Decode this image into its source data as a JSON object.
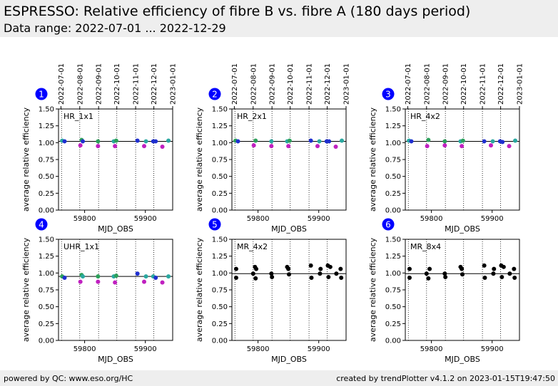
{
  "header": {
    "title": "ESPRESSO: Relative efficiency of fibre B vs. fibre A (180 days period)",
    "subtitle": "Data range: 2022-07-01 ... 2022-12-29"
  },
  "footer": {
    "left": "powered by QC: www.eso.org/HC",
    "right": "created by trendPlotter v4.1.2 on 2023-01-15T19:47:50"
  },
  "colors": {
    "header_bg": "#eeeeee",
    "badge": "#0000ff",
    "point_black": "#000000",
    "point_blue": "#1f2fd0",
    "point_green": "#2ca05a",
    "point_magenta": "#c020c0",
    "point_teal": "#2aa8a0"
  },
  "chart_data": {
    "type": "scatter",
    "shared": {
      "xlabel": "MJD_OBS",
      "ylabel": "average relative efficiency",
      "xlim": [
        59757,
        59945
      ],
      "ylim": [
        0.0,
        1.5
      ],
      "yticks": [
        "0.00",
        "0.25",
        "0.50",
        "0.75",
        "1.00",
        "1.25",
        "1.50"
      ],
      "xticks": [
        59800,
        59900
      ],
      "date_ticks": [
        "2022-07-01",
        "2022-08-01",
        "2022-09-01",
        "2022-10-01",
        "2022-11-01",
        "2022-12-01",
        "2023-01-01"
      ],
      "date_tick_mjd": [
        59761,
        59792,
        59823,
        59853,
        59884,
        59914,
        59945
      ],
      "vlines_mjd": [
        59762,
        59792,
        59823,
        59853,
        59884,
        59914,
        59945
      ],
      "reference_line": 1.0
    },
    "panels": [
      {
        "number": "1",
        "label": "HR_1x1",
        "show_dates": true,
        "ref": 1.02,
        "points": [
          {
            "x": 59763,
            "y": 1.03,
            "c": "teal"
          },
          {
            "x": 59767,
            "y": 1.02,
            "c": "blue"
          },
          {
            "x": 59793,
            "y": 0.96,
            "c": "magenta"
          },
          {
            "x": 59795,
            "y": 1.04,
            "c": "green"
          },
          {
            "x": 59797,
            "y": 1.02,
            "c": "blue"
          },
          {
            "x": 59822,
            "y": 0.95,
            "c": "magenta"
          },
          {
            "x": 59822,
            "y": 1.02,
            "c": "green"
          },
          {
            "x": 59848,
            "y": 1.02,
            "c": "teal"
          },
          {
            "x": 59850,
            "y": 0.95,
            "c": "magenta"
          },
          {
            "x": 59852,
            "y": 1.03,
            "c": "green"
          },
          {
            "x": 59887,
            "y": 1.03,
            "c": "blue"
          },
          {
            "x": 59898,
            "y": 0.95,
            "c": "magenta"
          },
          {
            "x": 59901,
            "y": 1.02,
            "c": "teal"
          },
          {
            "x": 59913,
            "y": 1.02,
            "c": "blue"
          },
          {
            "x": 59917,
            "y": 1.02,
            "c": "blue"
          },
          {
            "x": 59928,
            "y": 0.94,
            "c": "magenta"
          },
          {
            "x": 59938,
            "y": 1.03,
            "c": "teal"
          }
        ]
      },
      {
        "number": "2",
        "label": "HR_2x1",
        "show_dates": true,
        "ref": 1.02,
        "points": [
          {
            "x": 59763,
            "y": 1.03,
            "c": "green"
          },
          {
            "x": 59767,
            "y": 1.02,
            "c": "blue"
          },
          {
            "x": 59793,
            "y": 0.96,
            "c": "magenta"
          },
          {
            "x": 59796,
            "y": 1.03,
            "c": "green"
          },
          {
            "x": 59822,
            "y": 0.95,
            "c": "magenta"
          },
          {
            "x": 59822,
            "y": 1.02,
            "c": "teal"
          },
          {
            "x": 59848,
            "y": 1.02,
            "c": "teal"
          },
          {
            "x": 59850,
            "y": 0.95,
            "c": "magenta"
          },
          {
            "x": 59852,
            "y": 1.03,
            "c": "green"
          },
          {
            "x": 59887,
            "y": 1.03,
            "c": "blue"
          },
          {
            "x": 59898,
            "y": 0.95,
            "c": "magenta"
          },
          {
            "x": 59901,
            "y": 1.02,
            "c": "teal"
          },
          {
            "x": 59913,
            "y": 1.02,
            "c": "blue"
          },
          {
            "x": 59917,
            "y": 1.02,
            "c": "blue"
          },
          {
            "x": 59928,
            "y": 0.94,
            "c": "magenta"
          },
          {
            "x": 59938,
            "y": 1.03,
            "c": "teal"
          }
        ]
      },
      {
        "number": "3",
        "label": "HR_4x2",
        "show_dates": true,
        "ref": 1.02,
        "points": [
          {
            "x": 59763,
            "y": 1.03,
            "c": "teal"
          },
          {
            "x": 59767,
            "y": 1.02,
            "c": "blue"
          },
          {
            "x": 59793,
            "y": 0.95,
            "c": "magenta"
          },
          {
            "x": 59795,
            "y": 1.04,
            "c": "green"
          },
          {
            "x": 59822,
            "y": 0.96,
            "c": "magenta"
          },
          {
            "x": 59822,
            "y": 1.02,
            "c": "green"
          },
          {
            "x": 59848,
            "y": 1.02,
            "c": "teal"
          },
          {
            "x": 59850,
            "y": 0.95,
            "c": "magenta"
          },
          {
            "x": 59852,
            "y": 1.03,
            "c": "green"
          },
          {
            "x": 59887,
            "y": 1.02,
            "c": "blue"
          },
          {
            "x": 59898,
            "y": 0.96,
            "c": "magenta"
          },
          {
            "x": 59901,
            "y": 1.02,
            "c": "teal"
          },
          {
            "x": 59913,
            "y": 1.02,
            "c": "blue"
          },
          {
            "x": 59917,
            "y": 1.01,
            "c": "blue"
          },
          {
            "x": 59928,
            "y": 0.95,
            "c": "magenta"
          },
          {
            "x": 59938,
            "y": 1.03,
            "c": "teal"
          }
        ]
      },
      {
        "number": "4",
        "label": "UHR_1x1",
        "show_dates": false,
        "ref": 0.95,
        "points": [
          {
            "x": 59763,
            "y": 0.95,
            "c": "green"
          },
          {
            "x": 59767,
            "y": 0.93,
            "c": "blue"
          },
          {
            "x": 59793,
            "y": 0.87,
            "c": "magenta"
          },
          {
            "x": 59795,
            "y": 0.97,
            "c": "green"
          },
          {
            "x": 59797,
            "y": 0.95,
            "c": "teal"
          },
          {
            "x": 59822,
            "y": 0.87,
            "c": "magenta"
          },
          {
            "x": 59822,
            "y": 0.95,
            "c": "green"
          },
          {
            "x": 59848,
            "y": 0.95,
            "c": "teal"
          },
          {
            "x": 59850,
            "y": 0.86,
            "c": "magenta"
          },
          {
            "x": 59852,
            "y": 0.96,
            "c": "green"
          },
          {
            "x": 59887,
            "y": 0.99,
            "c": "blue"
          },
          {
            "x": 59898,
            "y": 0.87,
            "c": "magenta"
          },
          {
            "x": 59901,
            "y": 0.95,
            "c": "teal"
          },
          {
            "x": 59913,
            "y": 0.95,
            "c": "teal"
          },
          {
            "x": 59917,
            "y": 0.93,
            "c": "blue"
          },
          {
            "x": 59928,
            "y": 0.86,
            "c": "magenta"
          },
          {
            "x": 59938,
            "y": 0.95,
            "c": "teal"
          }
        ]
      },
      {
        "number": "5",
        "label": "MR_4x2",
        "show_dates": false,
        "ref": 0.99,
        "points": [
          {
            "x": 59764,
            "y": 1.06,
            "c": "black"
          },
          {
            "x": 59764,
            "y": 0.93,
            "c": "black"
          },
          {
            "x": 59792,
            "y": 0.99,
            "c": "black"
          },
          {
            "x": 59795,
            "y": 1.09,
            "c": "black"
          },
          {
            "x": 59796,
            "y": 0.92,
            "c": "black"
          },
          {
            "x": 59797,
            "y": 1.06,
            "c": "black"
          },
          {
            "x": 59822,
            "y": 0.99,
            "c": "black"
          },
          {
            "x": 59823,
            "y": 0.94,
            "c": "black"
          },
          {
            "x": 59848,
            "y": 1.09,
            "c": "black"
          },
          {
            "x": 59850,
            "y": 1.06,
            "c": "black"
          },
          {
            "x": 59851,
            "y": 0.98,
            "c": "black"
          },
          {
            "x": 59887,
            "y": 1.11,
            "c": "black"
          },
          {
            "x": 59888,
            "y": 0.93,
            "c": "black"
          },
          {
            "x": 59902,
            "y": 0.99,
            "c": "black"
          },
          {
            "x": 59903,
            "y": 1.06,
            "c": "black"
          },
          {
            "x": 59915,
            "y": 1.11,
            "c": "black"
          },
          {
            "x": 59916,
            "y": 0.94,
            "c": "black"
          },
          {
            "x": 59919,
            "y": 1.09,
            "c": "black"
          },
          {
            "x": 59929,
            "y": 0.99,
            "c": "black"
          },
          {
            "x": 59936,
            "y": 1.06,
            "c": "black"
          },
          {
            "x": 59937,
            "y": 0.93,
            "c": "black"
          }
        ]
      },
      {
        "number": "6",
        "label": "MR_8x4",
        "show_dates": false,
        "ref": 0.99,
        "points": [
          {
            "x": 59764,
            "y": 1.06,
            "c": "black"
          },
          {
            "x": 59764,
            "y": 0.93,
            "c": "black"
          },
          {
            "x": 59792,
            "y": 0.99,
            "c": "black"
          },
          {
            "x": 59795,
            "y": 0.92,
            "c": "black"
          },
          {
            "x": 59797,
            "y": 1.06,
            "c": "black"
          },
          {
            "x": 59822,
            "y": 0.99,
            "c": "black"
          },
          {
            "x": 59823,
            "y": 0.94,
            "c": "black"
          },
          {
            "x": 59848,
            "y": 1.09,
            "c": "black"
          },
          {
            "x": 59850,
            "y": 1.06,
            "c": "black"
          },
          {
            "x": 59851,
            "y": 0.98,
            "c": "black"
          },
          {
            "x": 59887,
            "y": 1.11,
            "c": "black"
          },
          {
            "x": 59888,
            "y": 0.93,
            "c": "black"
          },
          {
            "x": 59902,
            "y": 0.99,
            "c": "black"
          },
          {
            "x": 59903,
            "y": 1.06,
            "c": "black"
          },
          {
            "x": 59915,
            "y": 1.11,
            "c": "black"
          },
          {
            "x": 59916,
            "y": 0.94,
            "c": "black"
          },
          {
            "x": 59919,
            "y": 1.09,
            "c": "black"
          },
          {
            "x": 59929,
            "y": 0.99,
            "c": "black"
          },
          {
            "x": 59936,
            "y": 1.06,
            "c": "black"
          },
          {
            "x": 59937,
            "y": 0.93,
            "c": "black"
          }
        ]
      }
    ]
  }
}
